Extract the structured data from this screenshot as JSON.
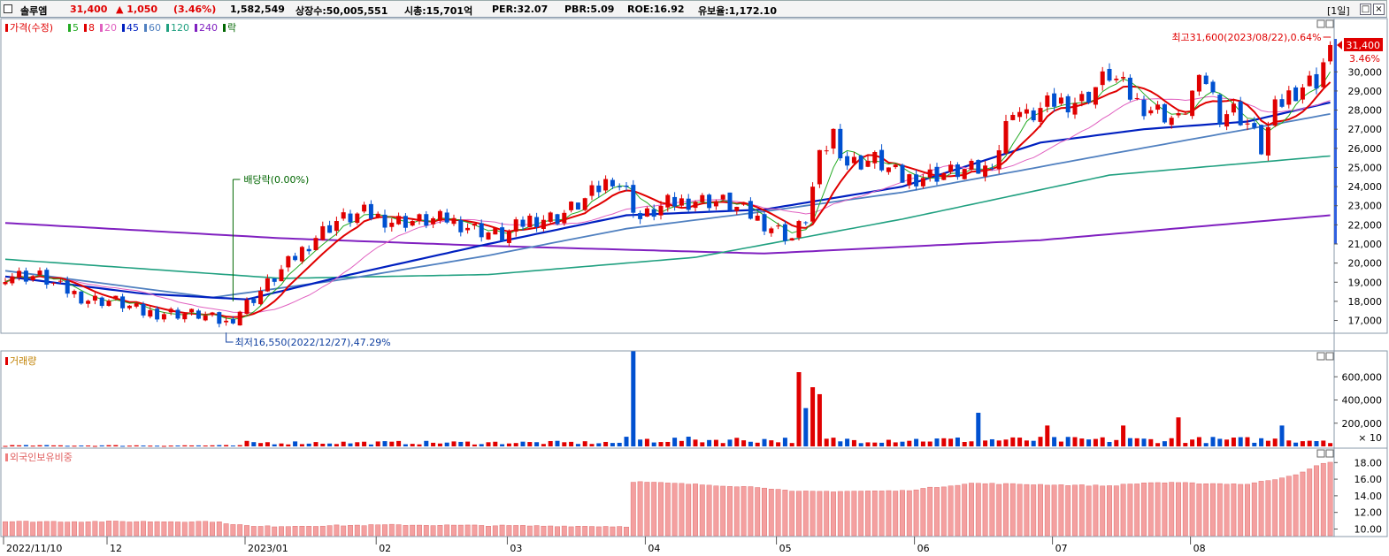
{
  "header": {
    "stock_name": "솔루엠",
    "price": "31,400",
    "change": "▲ 1,050",
    "change_pct": "(3.46%)",
    "volume": "1,582,549",
    "listed_shares": "상장수:50,005,551",
    "market_cap": "시총:15,701억",
    "per": "PER:32.07",
    "pbr": "PBR:5.09",
    "roe": "ROE:16.92",
    "float_rate": "유보율:1,172.10",
    "period_button": "[1일]",
    "colors": {
      "up": "#e00000",
      "down": "#0050d0"
    }
  },
  "price_panel": {
    "legend": [
      {
        "label": "가격(수정)",
        "color": "#e00000"
      },
      {
        "label": "5",
        "color": "#22aa22"
      },
      {
        "label": "8",
        "color": "#e00000"
      },
      {
        "label": "20",
        "color": "#e060c0"
      },
      {
        "label": "45",
        "color": "#0020c0"
      },
      {
        "label": "60",
        "color": "#5080c0"
      },
      {
        "label": "120",
        "color": "#20a080"
      },
      {
        "label": "240",
        "color": "#8020c0"
      },
      {
        "label": "락",
        "color": "#006600"
      }
    ],
    "high_annotation": "최고31,600(2023/08/22),0.64%",
    "low_annotation": "최저16,550(2022/12/27),47.29%",
    "dividend_annotation": "배당락(0.00%)",
    "current_price_tag": "31,400",
    "current_change_tag": "3.46%"
  },
  "volume_panel": {
    "title": "거래량",
    "unit_label": "× 10"
  },
  "foreign_panel": {
    "title": "외국인보유비중"
  },
  "chart_data": [
    {
      "type": "candlestick",
      "title": "",
      "y_ticks": [
        17000,
        18000,
        19000,
        20000,
        21000,
        22000,
        23000,
        24000,
        25000,
        26000,
        27000,
        28000,
        29000,
        30000
      ],
      "ylim": [
        16100,
        32000
      ],
      "x_ticks": [
        "2022/11/10",
        "12",
        "2023/01",
        "02",
        "03",
        "04",
        "05",
        "06",
        "07",
        "08"
      ],
      "anchors_close": [
        [
          0,
          19400
        ],
        [
          5,
          19300
        ],
        [
          8,
          18700
        ],
        [
          12,
          18100
        ],
        [
          16,
          18000
        ],
        [
          20,
          17400
        ],
        [
          24,
          17400
        ],
        [
          28,
          17300
        ],
        [
          32,
          16850
        ],
        [
          36,
          18200
        ],
        [
          40,
          19600
        ],
        [
          45,
          21400
        ],
        [
          48,
          22200
        ],
        [
          52,
          22600
        ],
        [
          56,
          22200
        ],
        [
          60,
          22200
        ],
        [
          64,
          22300
        ],
        [
          68,
          21800
        ],
        [
          72,
          21400
        ],
        [
          76,
          22300
        ],
        [
          80,
          22400
        ],
        [
          84,
          23300
        ],
        [
          88,
          24500
        ],
        [
          90,
          23700
        ],
        [
          92,
          22300
        ],
        [
          96,
          23100
        ],
        [
          100,
          23300
        ],
        [
          104,
          23200
        ],
        [
          108,
          22500
        ],
        [
          112,
          21700
        ],
        [
          114,
          21300
        ],
        [
          116,
          22400
        ],
        [
          118,
          25400
        ],
        [
          120,
          26800
        ],
        [
          122,
          25200
        ],
        [
          126,
          25400
        ],
        [
          130,
          24400
        ],
        [
          134,
          24600
        ],
        [
          138,
          24800
        ],
        [
          142,
          24900
        ],
        [
          144,
          26000
        ],
        [
          146,
          28200
        ],
        [
          148,
          27600
        ],
        [
          152,
          28400
        ],
        [
          156,
          28500
        ],
        [
          160,
          29900
        ],
        [
          164,
          28400
        ],
        [
          168,
          27800
        ],
        [
          170,
          27400
        ],
        [
          172,
          28900
        ],
        [
          174,
          29600
        ],
        [
          176,
          27800
        ],
        [
          178,
          28000
        ],
        [
          180,
          27300
        ],
        [
          182,
          26000
        ],
        [
          184,
          28000
        ],
        [
          186,
          28800
        ],
        [
          188,
          29300
        ],
        [
          190,
          29600
        ],
        [
          192,
          31400
        ]
      ],
      "ma_last": {
        "5": 30600,
        "8": 29500,
        "20": 28700,
        "45": 28400,
        "60": 27800,
        "120": 25600,
        "240": 22500
      }
    },
    {
      "type": "bar",
      "title": "거래량",
      "y_ticks": [
        "200,000",
        "400,000",
        "600,000"
      ],
      "ylim": [
        0,
        800000
      ],
      "spikes": [
        [
          91,
          820000
        ],
        [
          115,
          640000
        ],
        [
          116,
          330000
        ],
        [
          117,
          510000
        ],
        [
          118,
          450000
        ],
        [
          141,
          290000
        ],
        [
          151,
          180000
        ],
        [
          162,
          180000
        ],
        [
          170,
          250000
        ],
        [
          185,
          180000
        ]
      ],
      "baseline_volume": 40000
    },
    {
      "type": "bar",
      "title": "외국인보유비중",
      "y_ticks": [
        "10.00",
        "12.00",
        "14.00",
        "16.00",
        "18.00"
      ],
      "ylim": [
        9.2,
        19.2
      ],
      "anchors": [
        [
          0,
          10.9
        ],
        [
          30,
          10.9
        ],
        [
          36,
          10.3
        ],
        [
          56,
          10.5
        ],
        [
          90,
          10.3
        ],
        [
          91,
          15.7
        ],
        [
          110,
          15.0
        ],
        [
          114,
          14.5
        ],
        [
          130,
          14.6
        ],
        [
          140,
          15.5
        ],
        [
          160,
          15.2
        ],
        [
          166,
          15.6
        ],
        [
          180,
          15.4
        ],
        [
          184,
          16.0
        ],
        [
          188,
          16.8
        ],
        [
          190,
          17.6
        ],
        [
          192,
          18.1
        ]
      ]
    }
  ]
}
